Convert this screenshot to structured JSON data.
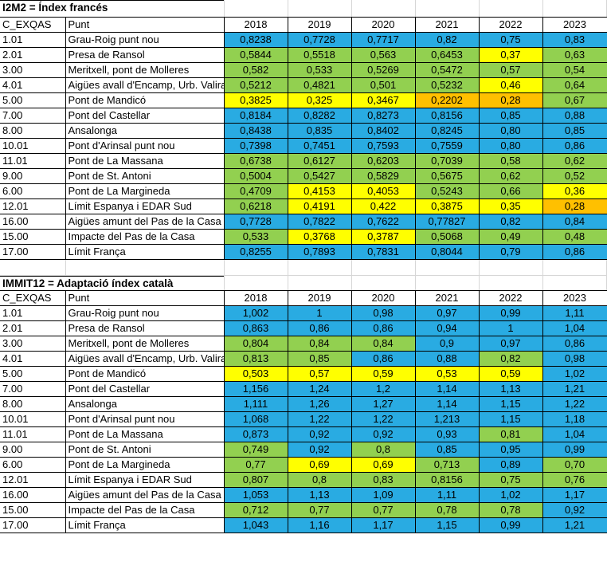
{
  "colors": {
    "blue": "#29ABE2",
    "green": "#92D050",
    "yellow": "#FFFF00",
    "orange": "#FFC000",
    "gridline": "#d6d6d6",
    "border": "#000000"
  },
  "columns": [
    "C_EXQAS",
    "Punt",
    "2018",
    "2019",
    "2020",
    "2021",
    "2022",
    "2023"
  ],
  "tables": [
    {
      "title": "I2M2 = Índex francés",
      "rows": [
        {
          "code": "1.01",
          "punt": "Grau-Roig punt nou",
          "values": [
            "0,8238",
            "0,7728",
            "0,7717",
            "0,82",
            "0,75",
            "0,83"
          ],
          "colors": [
            "blue",
            "blue",
            "blue",
            "blue",
            "blue",
            "blue"
          ]
        },
        {
          "code": "2.01",
          "punt": "Presa de Ransol",
          "values": [
            "0,5844",
            "0,5518",
            "0,563",
            "0,6453",
            "0,37",
            "0,63"
          ],
          "colors": [
            "green",
            "green",
            "green",
            "green",
            "yellow",
            "green"
          ]
        },
        {
          "code": "3.00",
          "punt": "Meritxell, pont de Molleres",
          "values": [
            "0,582",
            "0,533",
            "0,5269",
            "0,5472",
            "0,57",
            "0,54"
          ],
          "colors": [
            "green",
            "green",
            "green",
            "green",
            "green",
            "green"
          ]
        },
        {
          "code": "4.01",
          "punt": "Aigües avall d'Encamp, Urb. Valira",
          "values": [
            "0,5212",
            "0,4821",
            "0,501",
            "0,5232",
            "0,46",
            "0,64"
          ],
          "colors": [
            "green",
            "green",
            "green",
            "green",
            "yellow",
            "green"
          ]
        },
        {
          "code": "5.00",
          "punt": "Pont de Mandicó",
          "values": [
            "0,3825",
            "0,325",
            "0,3467",
            "0,2202",
            "0,28",
            "0,67"
          ],
          "colors": [
            "yellow",
            "yellow",
            "yellow",
            "orange",
            "orange",
            "green"
          ]
        },
        {
          "code": "7.00",
          "punt": "Pont del Castellar",
          "values": [
            "0,8184",
            "0,8282",
            "0,8273",
            "0,8156",
            "0,85",
            "0,88"
          ],
          "colors": [
            "blue",
            "blue",
            "blue",
            "blue",
            "blue",
            "blue"
          ]
        },
        {
          "code": "8.00",
          "punt": "Ansalonga",
          "values": [
            "0,8438",
            "0,835",
            "0,8402",
            "0,8245",
            "0,80",
            "0,85"
          ],
          "colors": [
            "blue",
            "blue",
            "blue",
            "blue",
            "blue",
            "blue"
          ]
        },
        {
          "code": "10.01",
          "punt": "Pont d'Arinsal punt nou",
          "values": [
            "0,7398",
            "0,7451",
            "0,7593",
            "0,7559",
            "0,80",
            "0,86"
          ],
          "colors": [
            "blue",
            "blue",
            "blue",
            "blue",
            "blue",
            "blue"
          ]
        },
        {
          "code": "11.01",
          "punt": "Pont de La Massana",
          "values": [
            "0,6738",
            "0,6127",
            "0,6203",
            "0,7039",
            "0,58",
            "0,62"
          ],
          "colors": [
            "green",
            "green",
            "green",
            "green",
            "green",
            "green"
          ]
        },
        {
          "code": "9.00",
          "punt": "Pont de St. Antoni",
          "values": [
            "0,5004",
            "0,5427",
            "0,5829",
            "0,5675",
            "0,62",
            "0,52"
          ],
          "colors": [
            "green",
            "green",
            "green",
            "green",
            "green",
            "green"
          ]
        },
        {
          "code": "6.00",
          "punt": "Pont de La Margineda",
          "values": [
            "0,4709",
            "0,4153",
            "0,4053",
            "0,5243",
            "0,66",
            "0,36"
          ],
          "colors": [
            "green",
            "yellow",
            "yellow",
            "green",
            "green",
            "yellow"
          ]
        },
        {
          "code": "12.01",
          "punt": "Límit Espanya i EDAR Sud",
          "values": [
            "0,6218",
            "0,4191",
            "0,422",
            "0,3875",
            "0,35",
            "0,28"
          ],
          "colors": [
            "green",
            "yellow",
            "yellow",
            "yellow",
            "yellow",
            "orange"
          ]
        },
        {
          "code": "16.00",
          "punt": "Aigües amunt del Pas de la Casa",
          "values": [
            "0,7728",
            "0,7822",
            "0,7622",
            "0,77827",
            "0,82",
            "0,84"
          ],
          "colors": [
            "blue",
            "blue",
            "blue",
            "blue",
            "blue",
            "blue"
          ]
        },
        {
          "code": "15.00",
          "punt": "Impacte del Pas de la Casa",
          "values": [
            "0,533",
            "0,3768",
            "0,3787",
            "0,5068",
            "0,49",
            "0,48"
          ],
          "colors": [
            "green",
            "yellow",
            "yellow",
            "green",
            "green",
            "green"
          ]
        },
        {
          "code": "17.00",
          "punt": "Límit França",
          "values": [
            "0,8255",
            "0,7893",
            "0,7831",
            "0,8044",
            "0,79",
            "0,86"
          ],
          "colors": [
            "blue",
            "blue",
            "blue",
            "blue",
            "blue",
            "blue"
          ]
        }
      ]
    },
    {
      "title": "IMMIT12 = Adaptació índex català",
      "rows": [
        {
          "code": "1.01",
          "punt": "Grau-Roig punt nou",
          "values": [
            "1,002",
            "1",
            "0,98",
            "0,97",
            "0,99",
            "1,11"
          ],
          "colors": [
            "blue",
            "blue",
            "blue",
            "blue",
            "blue",
            "blue"
          ]
        },
        {
          "code": "2.01",
          "punt": "Presa de Ransol",
          "values": [
            "0,863",
            "0,86",
            "0,86",
            "0,94",
            "1",
            "1,04"
          ],
          "colors": [
            "blue",
            "blue",
            "blue",
            "blue",
            "blue",
            "blue"
          ]
        },
        {
          "code": "3.00",
          "punt": "Meritxell, pont de Molleres",
          "values": [
            "0,804",
            "0,84",
            "0,84",
            "0,9",
            "0,97",
            "0,86"
          ],
          "colors": [
            "green",
            "green",
            "green",
            "blue",
            "blue",
            "blue"
          ]
        },
        {
          "code": "4.01",
          "punt": "Aigües avall d'Encamp, Urb. Valira",
          "values": [
            "0,813",
            "0,85",
            "0,86",
            "0,88",
            "0,82",
            "0,98"
          ],
          "colors": [
            "green",
            "green",
            "blue",
            "blue",
            "green",
            "blue"
          ]
        },
        {
          "code": "5.00",
          "punt": "Pont de Mandicó",
          "values": [
            "0,503",
            "0,57",
            "0,59",
            "0,53",
            "0,59",
            "1,02"
          ],
          "colors": [
            "yellow",
            "yellow",
            "yellow",
            "yellow",
            "yellow",
            "blue"
          ]
        },
        {
          "code": "7.00",
          "punt": "Pont del Castellar",
          "values": [
            "1,156",
            "1,24",
            "1,2",
            "1,14",
            "1,13",
            "1,21"
          ],
          "colors": [
            "blue",
            "blue",
            "blue",
            "blue",
            "blue",
            "blue"
          ]
        },
        {
          "code": "8.00",
          "punt": "Ansalonga",
          "values": [
            "1,111",
            "1,26",
            "1,27",
            "1,14",
            "1,15",
            "1,22"
          ],
          "colors": [
            "blue",
            "blue",
            "blue",
            "blue",
            "blue",
            "blue"
          ]
        },
        {
          "code": "10.01",
          "punt": "Pont d'Arinsal punt nou",
          "values": [
            "1,068",
            "1,22",
            "1,22",
            "1,213",
            "1,15",
            "1,18"
          ],
          "colors": [
            "blue",
            "blue",
            "blue",
            "blue",
            "blue",
            "blue"
          ]
        },
        {
          "code": "11.01",
          "punt": "Pont de La Massana",
          "values": [
            "0,873",
            "0,92",
            "0,92",
            "0,93",
            "0,81",
            "1,04"
          ],
          "colors": [
            "blue",
            "blue",
            "blue",
            "blue",
            "green",
            "blue"
          ]
        },
        {
          "code": "9.00",
          "punt": "Pont de St. Antoni",
          "values": [
            "0,749",
            "0,92",
            "0,8",
            "0,85",
            "0,95",
            "0,99"
          ],
          "colors": [
            "green",
            "blue",
            "green",
            "blue",
            "blue",
            "blue"
          ]
        },
        {
          "code": "6.00",
          "punt": "Pont de La Margineda",
          "values": [
            "0,77",
            "0,69",
            "0,69",
            "0,713",
            "0,89",
            "0,70"
          ],
          "colors": [
            "green",
            "yellow",
            "yellow",
            "green",
            "blue",
            "green"
          ]
        },
        {
          "code": "12.01",
          "punt": "Límit Espanya i EDAR Sud",
          "values": [
            "0,807",
            "0,8",
            "0,83",
            "0,8156",
            "0,75",
            "0,76"
          ],
          "colors": [
            "green",
            "green",
            "green",
            "green",
            "green",
            "green"
          ]
        },
        {
          "code": "16.00",
          "punt": "Aigües amunt del Pas de la Casa",
          "values": [
            "1,053",
            "1,13",
            "1,09",
            "1,11",
            "1,02",
            "1,17"
          ],
          "colors": [
            "blue",
            "blue",
            "blue",
            "blue",
            "blue",
            "blue"
          ]
        },
        {
          "code": "15.00",
          "punt": "Impacte del Pas de la Casa",
          "values": [
            "0,712",
            "0,77",
            "0,77",
            "0,78",
            "0,78",
            "0,92"
          ],
          "colors": [
            "green",
            "green",
            "green",
            "green",
            "green",
            "blue"
          ]
        },
        {
          "code": "17.00",
          "punt": "Límit França",
          "values": [
            "1,043",
            "1,16",
            "1,17",
            "1,15",
            "0,99",
            "1,21"
          ],
          "colors": [
            "blue",
            "blue",
            "blue",
            "blue",
            "blue",
            "blue"
          ]
        }
      ]
    }
  ]
}
